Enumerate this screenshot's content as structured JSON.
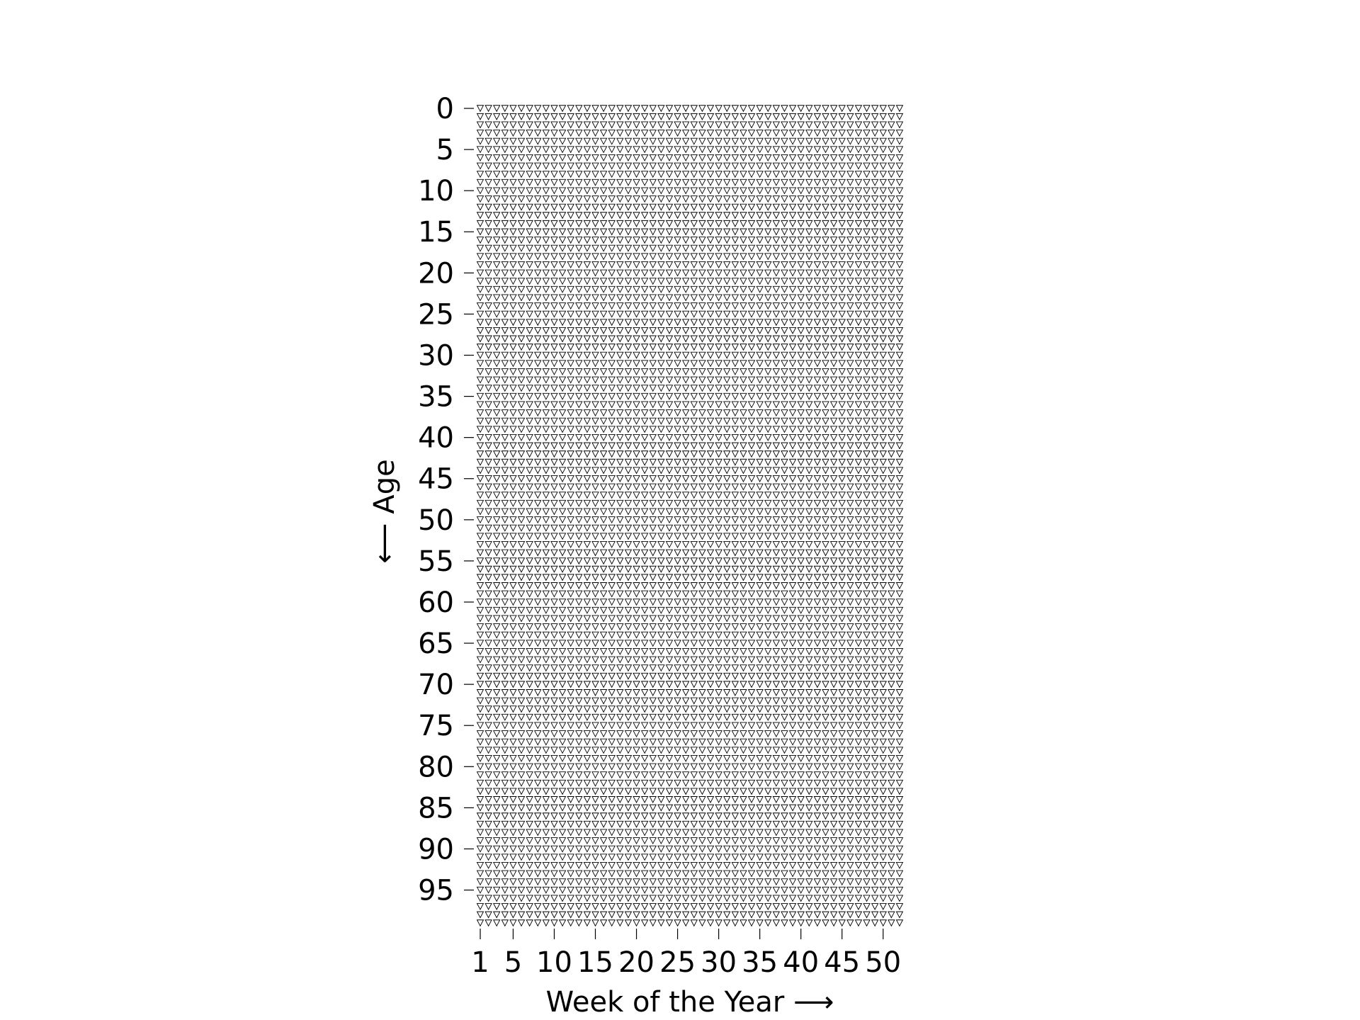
{
  "chart_data": {
    "type": "scatter",
    "title": "",
    "xlabel": "Week of the Year  ⟶",
    "ylabel": "⟵  Age",
    "x": {
      "min": 1,
      "max": 52,
      "ticks": [
        1,
        5,
        10,
        15,
        20,
        25,
        30,
        35,
        40,
        45,
        50
      ],
      "tick_labels": [
        "1",
        "5",
        "10",
        "15",
        "20",
        "25",
        "30",
        "35",
        "40",
        "45",
        "50"
      ]
    },
    "y": {
      "min": 0,
      "max": 99,
      "inverted": true,
      "ticks": [
        0,
        5,
        10,
        15,
        20,
        25,
        30,
        35,
        40,
        45,
        50,
        55,
        60,
        65,
        70,
        75,
        80,
        85,
        90,
        95
      ],
      "tick_labels": [
        "0",
        "5",
        "10",
        "15",
        "20",
        "25",
        "30",
        "35",
        "40",
        "45",
        "50",
        "55",
        "60",
        "65",
        "70",
        "75",
        "80",
        "85",
        "90",
        "95"
      ]
    },
    "series": [
      {
        "marker": "triangle-down",
        "filled": false,
        "color": "#000000",
        "weeks_per_year": 52,
        "years": 100
      }
    ],
    "grid": false,
    "legend": false
  }
}
